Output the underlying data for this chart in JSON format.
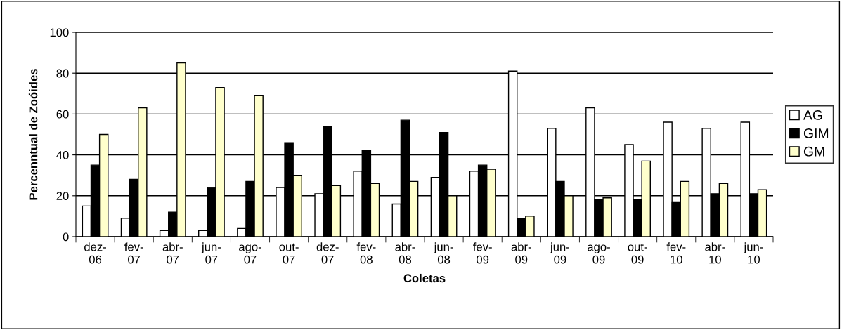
{
  "chart_data": {
    "type": "bar",
    "categories": [
      "dez-\n06",
      "fev-\n07",
      "abr-\n07",
      "jun-\n07",
      "ago-\n07",
      "out-\n07",
      "dez-\n07",
      "fev-\n08",
      "abr-\n08",
      "jun-\n08",
      "fev-\n09",
      "abr-\n09",
      "jun-\n09",
      "ago-\n09",
      "out-\n09",
      "fev-\n10",
      "abr-\n10",
      "jun-\n10"
    ],
    "series": [
      {
        "name": "AG",
        "color": "#ffffff",
        "values": [
          15,
          9,
          3,
          3,
          4,
          24,
          21,
          32,
          16,
          29,
          32,
          81,
          53,
          63,
          45,
          56,
          53,
          56
        ]
      },
      {
        "name": "GIM",
        "color": "#000000",
        "values": [
          35,
          28,
          12,
          24,
          27,
          46,
          54,
          42,
          57,
          51,
          35,
          9,
          27,
          18,
          18,
          17,
          21,
          21
        ]
      },
      {
        "name": "GM",
        "color": "#ffffcc",
        "values": [
          50,
          63,
          85,
          73,
          69,
          30,
          25,
          26,
          27,
          20,
          33,
          10,
          20,
          19,
          37,
          27,
          26,
          23
        ]
      }
    ],
    "xlabel": "Coletas",
    "ylabel": "Percenntual de Zoóides",
    "ylim": [
      0,
      100
    ],
    "yticks": [
      0,
      20,
      40,
      60,
      80,
      100
    ],
    "grid": "y",
    "legend": "right"
  }
}
